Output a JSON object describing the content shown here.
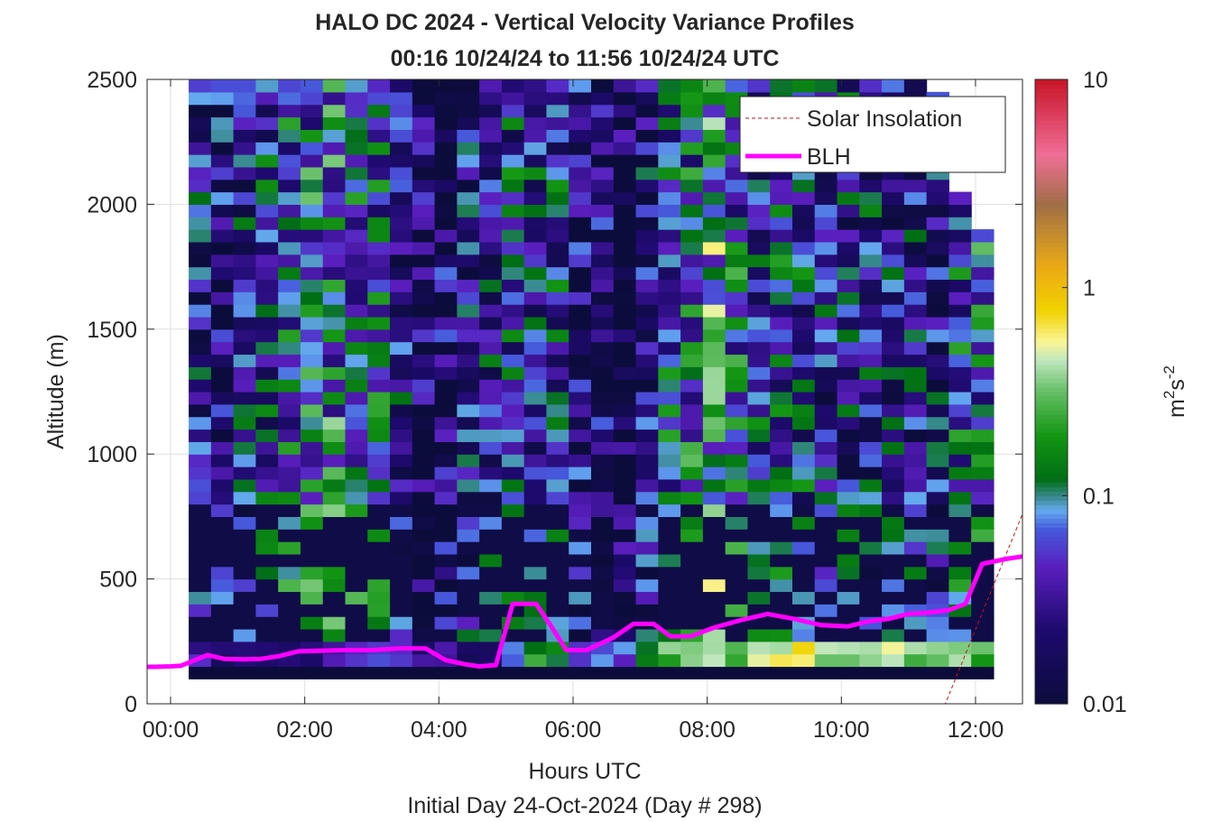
{
  "chart_data": {
    "type": "heatmap",
    "title_line1": "HALO DC 2024 - Vertical Velocity Variance Profiles",
    "title_line2": "00:16 10/24/24 to 11:56 10/24/24  UTC",
    "xlabel": "Hours UTC",
    "xsublabel": "Initial Day 24-Oct-2024 (Day # 298)",
    "ylabel": "Altitude (m)",
    "colorbar_label": "m²s⁻²",
    "colorbar_label_base": "m",
    "colorbar_label_exp1": "2",
    "colorbar_label_s": "s",
    "colorbar_label_exp2": "-2",
    "xlim": [
      -0.35,
      12.7
    ],
    "ylim": [
      0,
      2500
    ],
    "clim": [
      0.01,
      10
    ],
    "color_scale": "log",
    "grid": true,
    "x_ticks": [
      0,
      2,
      4,
      6,
      8,
      10,
      12
    ],
    "x_tick_labels": [
      "00:00",
      "02:00",
      "04:00",
      "06:00",
      "08:00",
      "10:00",
      "12:00"
    ],
    "y_ticks": [
      0,
      500,
      1000,
      1500,
      2000,
      2500
    ],
    "y_tick_labels": [
      "0",
      "500",
      "1000",
      "1500",
      "2000",
      "2500"
    ],
    "colorbar_ticks": [
      0.01,
      0.1,
      1,
      10
    ],
    "colorbar_tick_labels": [
      "0.01",
      "0.1",
      "1",
      "10"
    ],
    "legend_position": "top-right",
    "legend": [
      {
        "label": "Solar Insolation",
        "color": "#cc1111",
        "style": "dashed"
      },
      {
        "label": "BLH",
        "color": "#ff00ff",
        "style": "solid"
      }
    ],
    "variance_grid": {
      "x_start": 0.27,
      "x_step": 0.3333,
      "alt_start": 100,
      "alt_step": 50,
      "ncols": 36,
      "nrows": 48,
      "bottom_level": 0.01,
      "surface_top": 250
    },
    "variance_columns": [
      {
        "top": 2500,
        "upper": 0.035,
        "boundary": 0.04
      },
      {
        "top": 2500,
        "upper": 0.03,
        "boundary": 0.025
      },
      {
        "top": 2500,
        "upper": 0.04,
        "boundary": 0.02
      },
      {
        "top": 2500,
        "upper": 0.045,
        "boundary": 0.02
      },
      {
        "top": 2500,
        "upper": 0.07,
        "boundary": 0.02
      },
      {
        "top": 2500,
        "upper": 0.09,
        "boundary": 0.02
      },
      {
        "top": 2500,
        "upper": 0.1,
        "boundary": 0.03
      },
      {
        "top": 2500,
        "upper": 0.08,
        "boundary": 0.04
      },
      {
        "top": 2500,
        "upper": 0.07,
        "boundary": 0.05
      },
      {
        "top": 2500,
        "upper": 0.035,
        "boundary": 0.04
      },
      {
        "top": 2500,
        "upper": 0.015,
        "boundary": 0.03
      },
      {
        "top": 2500,
        "upper": 0.02,
        "boundary": 0.03
      },
      {
        "top": 2500,
        "upper": 0.03,
        "boundary": 0.02
      },
      {
        "top": 2500,
        "upper": 0.04,
        "boundary": 0.015
      },
      {
        "top": 2500,
        "upper": 0.05,
        "boundary": 0.1
      },
      {
        "top": 2500,
        "upper": 0.05,
        "boundary": 0.2
      },
      {
        "top": 2500,
        "upper": 0.05,
        "boundary": 0.15
      },
      {
        "top": 2500,
        "upper": 0.025,
        "boundary": 0.08
      },
      {
        "top": 2500,
        "upper": 0.02,
        "boundary": 0.06
      },
      {
        "top": 2500,
        "upper": 0.015,
        "boundary": 0.06
      },
      {
        "top": 2500,
        "upper": 0.03,
        "boundary": 0.12
      },
      {
        "top": 2500,
        "upper": 0.06,
        "boundary": 0.3
      },
      {
        "top": 2500,
        "upper": 0.08,
        "boundary": 0.4
      },
      {
        "top": 2500,
        "upper": 0.15,
        "boundary": 0.35
      },
      {
        "top": 2500,
        "upper": 0.07,
        "boundary": 0.3
      },
      {
        "top": 2500,
        "upper": 0.05,
        "boundary": 0.5
      },
      {
        "top": 2500,
        "upper": 0.06,
        "boundary": 0.6
      },
      {
        "top": 2500,
        "upper": 0.05,
        "boundary": 0.6
      },
      {
        "top": 2500,
        "upper": 0.035,
        "boundary": 0.5
      },
      {
        "top": 2500,
        "upper": 0.04,
        "boundary": 0.5
      },
      {
        "top": 2500,
        "upper": 0.04,
        "boundary": 0.45
      },
      {
        "top": 2500,
        "upper": 0.035,
        "boundary": 0.4
      },
      {
        "top": 2500,
        "upper": 0.04,
        "boundary": 0.4
      },
      {
        "top": 2450,
        "upper": 0.03,
        "boundary": 0.35
      },
      {
        "top": 2050,
        "upper": 0.06,
        "boundary": 0.35
      },
      {
        "top": 1900,
        "upper": 0.08,
        "boundary": 0.3
      }
    ],
    "blh": {
      "x": [
        -0.35,
        -0.22,
        0.0,
        0.15,
        0.55,
        0.8,
        1.1,
        1.35,
        1.6,
        1.9,
        2.2,
        2.6,
        3.0,
        3.4,
        3.8,
        4.1,
        4.4,
        4.6,
        4.85,
        5.1,
        5.45,
        5.65,
        5.9,
        6.2,
        6.6,
        6.9,
        7.2,
        7.45,
        7.75,
        8.1,
        8.5,
        8.9,
        9.3,
        9.7,
        10.1,
        10.4,
        10.7,
        11.0,
        11.3,
        11.6,
        11.85,
        12.1,
        12.45,
        12.7
      ],
      "y": [
        148,
        148,
        150,
        152,
        195,
        180,
        178,
        180,
        190,
        210,
        212,
        215,
        215,
        222,
        222,
        175,
        158,
        150,
        155,
        400,
        400,
        320,
        215,
        215,
        265,
        320,
        320,
        270,
        270,
        305,
        335,
        360,
        340,
        315,
        310,
        330,
        340,
        360,
        365,
        375,
        400,
        560,
        580,
        590
      ]
    },
    "solar_insolation": {
      "x": [
        -0.35,
        11.55,
        12.7
      ],
      "y": [
        0,
        0,
        760
      ]
    }
  }
}
